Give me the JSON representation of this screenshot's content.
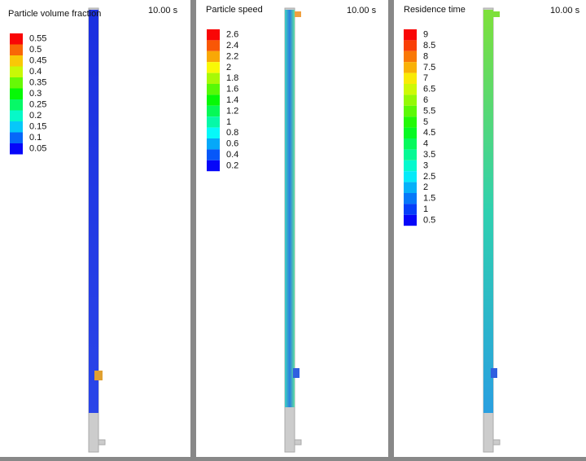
{
  "panels": [
    {
      "title": "Particle volume fraction",
      "time": "10.00 s",
      "legend": [
        "0.55",
        "0.5",
        "0.45",
        "0.4",
        "0.35",
        "0.3",
        "0.25",
        "0.2",
        "0.15",
        "0.1",
        "0.05"
      ]
    },
    {
      "title": "Particle speed",
      "time": "10.00 s",
      "legend": [
        "2.6",
        "2.4",
        "2.2",
        "2",
        "1.8",
        "1.6",
        "1.4",
        "1.2",
        "1",
        "0.8",
        "0.6",
        "0.4",
        "0.2"
      ]
    },
    {
      "title": "Residence time",
      "time": "10.00 s",
      "legend": [
        "9",
        "8.5",
        "8",
        "7.5",
        "7",
        "6.5",
        "6",
        "5.5",
        "5",
        "4.5",
        "4",
        "3.5",
        "3",
        "2.5",
        "2",
        "1.5",
        "1",
        "0.5"
      ]
    }
  ]
}
